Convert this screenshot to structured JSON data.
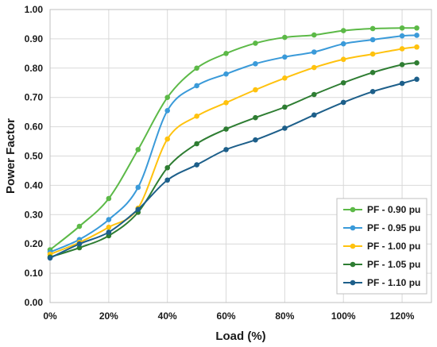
{
  "chart_data": {
    "type": "line",
    "title": "",
    "xlabel": "Load (%)",
    "ylabel": "Power Factor",
    "x": [
      0,
      10,
      20,
      30,
      40,
      50,
      60,
      70,
      80,
      90,
      100,
      110,
      120,
      125
    ],
    "xlim": [
      0,
      130
    ],
    "ylim": [
      0,
      1.0
    ],
    "x_ticks": [
      0,
      20,
      40,
      60,
      80,
      100,
      120
    ],
    "x_tick_labels": [
      "0%",
      "20%",
      "40%",
      "60%",
      "80%",
      "100%",
      "120%"
    ],
    "y_ticks": [
      0,
      0.1,
      0.2,
      0.3,
      0.4,
      0.5,
      0.6,
      0.7,
      0.8,
      0.9,
      1.0
    ],
    "y_tick_labels": [
      "0.00",
      "0.10",
      "0.20",
      "0.30",
      "0.40",
      "0.50",
      "0.60",
      "0.70",
      "0.80",
      "0.90",
      "1.00"
    ],
    "grid": true,
    "legend_position": "bottom-right",
    "series": [
      {
        "name": "PF - 0.90 pu",
        "color": "#5cb947",
        "values": [
          0.18,
          0.26,
          0.355,
          0.522,
          0.7,
          0.8,
          0.85,
          0.885,
          0.905,
          0.913,
          0.928,
          0.935,
          0.937,
          0.937
        ]
      },
      {
        "name": "PF - 0.95 pu",
        "color": "#3a9ad9",
        "values": [
          0.172,
          0.215,
          0.283,
          0.393,
          0.655,
          0.74,
          0.78,
          0.815,
          0.838,
          0.855,
          0.883,
          0.897,
          0.91,
          0.912
        ]
      },
      {
        "name": "PF - 1.00 pu",
        "color": "#ffc20e",
        "values": [
          0.165,
          0.205,
          0.257,
          0.322,
          0.558,
          0.636,
          0.682,
          0.726,
          0.766,
          0.802,
          0.83,
          0.848,
          0.866,
          0.872
        ]
      },
      {
        "name": "PF - 1.05 pu",
        "color": "#2e7d32",
        "values": [
          0.155,
          0.187,
          0.228,
          0.308,
          0.46,
          0.542,
          0.592,
          0.631,
          0.667,
          0.71,
          0.75,
          0.785,
          0.812,
          0.818
        ]
      },
      {
        "name": "PF - 1.10 pu",
        "color": "#1d5f8a",
        "values": [
          0.152,
          0.2,
          0.24,
          0.318,
          0.418,
          0.47,
          0.522,
          0.555,
          0.595,
          0.64,
          0.683,
          0.72,
          0.748,
          0.762
        ]
      }
    ]
  }
}
